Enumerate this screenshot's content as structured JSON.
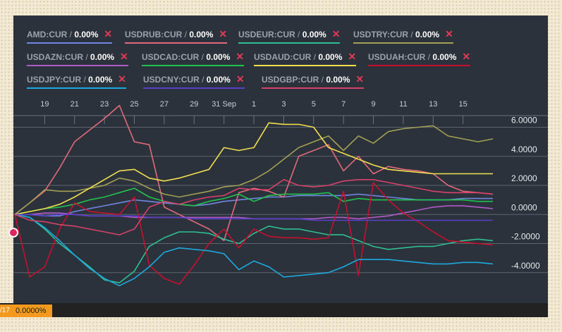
{
  "legend": [
    {
      "symbol": "AMD:CUR",
      "value": "0.00%",
      "color": "#6f87e0",
      "close": "✕"
    },
    {
      "symbol": "USDRUB:CUR",
      "value": "0.00%",
      "color": "#e06a7a",
      "close": "✕"
    },
    {
      "symbol": "USDEUR:CUR",
      "value": "0.00%",
      "color": "#2fbf93",
      "close": "✕"
    },
    {
      "symbol": "USDTRY:CUR",
      "value": "0.00%",
      "color": "#a39f55",
      "close": "✕"
    },
    {
      "symbol": "USDAZN:CUR",
      "value": "0.00%",
      "color": "#b05cc8",
      "close": "✕"
    },
    {
      "symbol": "USDCAD:CUR",
      "value": "0.00%",
      "color": "#22c24e",
      "close": "✕"
    },
    {
      "symbol": "USDAUD:CUR",
      "value": "0.00%",
      "color": "#f2df4f",
      "close": "✕"
    },
    {
      "symbol": "USDUAH:CUR",
      "value": "0.00%",
      "color": "#c8102e",
      "close": "✕"
    },
    {
      "symbol": "USDJPY:CUR",
      "value": "0.00%",
      "color": "#1da9de",
      "close": "✕"
    },
    {
      "symbol": "USDCNY:CUR",
      "value": "0.00%",
      "color": "#5a3fc8",
      "close": "✕"
    },
    {
      "symbol": "USDGBP:CUR",
      "value": "0.00%",
      "color": "#d6426a",
      "close": "✕"
    }
  ],
  "footer": {
    "date_fragment": "/17",
    "value": "0.0000%"
  },
  "chart_data": {
    "type": "line",
    "title": "",
    "xlabel": "",
    "ylabel": "",
    "x": [
      17,
      18,
      19,
      20,
      21,
      22,
      23,
      24,
      25,
      26,
      27,
      28,
      29,
      30,
      31,
      32,
      33,
      34,
      35,
      36,
      37,
      38,
      39,
      40,
      41,
      42,
      43,
      44,
      45,
      46,
      47,
      48,
      49
    ],
    "x_ticks": [
      19,
      21,
      23,
      25,
      27,
      29,
      31,
      33,
      35,
      37,
      39,
      41,
      43,
      45,
      47
    ],
    "x_tick_labels": [
      "19",
      "21",
      "23",
      "25",
      "27",
      "29",
      "31 Sep",
      "1",
      "3",
      "5",
      "7",
      "9",
      "11",
      "13",
      "15"
    ],
    "y_ticks": [
      6,
      4,
      2,
      0,
      -2,
      -4
    ],
    "y_tick_labels": [
      "6.0000",
      "4.0000",
      "2.0000",
      "0.0000",
      "-2.0000",
      "-4.0000"
    ],
    "ylim": [
      -6,
      6.8
    ],
    "grid": true,
    "series": [
      {
        "name": "AMD:CUR",
        "color": "#6f87e0",
        "values": [
          0,
          0.0,
          -0.1,
          -0.1,
          0.2,
          0.4,
          0.6,
          0.8,
          1.0,
          0.9,
          0.8,
          0.7,
          0.6,
          0.7,
          0.9,
          1.0,
          1.1,
          1.2,
          1.2,
          1.3,
          1.3,
          1.3,
          1.3,
          1.4,
          1.3,
          1.2,
          1.1,
          1.0,
          1.0,
          1.0,
          1.1,
          1.1,
          1.1
        ]
      },
      {
        "name": "USDRUB:CUR",
        "color": "#e06a7a",
        "values": [
          0,
          0.8,
          1.6,
          3.2,
          5.0,
          5.8,
          6.6,
          7.5,
          5.0,
          4.8,
          0.5,
          0.0,
          -0.5,
          -1.0,
          -1.8,
          1.5,
          1.8,
          1.6,
          1.2,
          4.0,
          4.4,
          4.8,
          3.0,
          4.0,
          2.8,
          3.3,
          3.1,
          3.0,
          2.8,
          2.0,
          1.6,
          1.5,
          1.4
        ]
      },
      {
        "name": "USDEUR:CUR",
        "color": "#2fbf93",
        "values": [
          0,
          -0.2,
          -1.0,
          -2.0,
          -2.8,
          -3.6,
          -4.5,
          -4.7,
          -3.9,
          -2.2,
          -1.6,
          -1.2,
          -1.2,
          -1.3,
          -1.7,
          -2.0,
          -1.3,
          -0.8,
          -1.0,
          -1.0,
          -1.2,
          -1.4,
          -1.4,
          -1.8,
          -2.2,
          -2.4,
          -2.3,
          -2.2,
          -2.2,
          -2.0,
          -1.8,
          -1.7,
          -1.8
        ]
      },
      {
        "name": "USDTRY:CUR",
        "color": "#a39f55",
        "values": [
          0,
          0.8,
          1.7,
          1.6,
          1.6,
          1.8,
          2.0,
          2.5,
          2.3,
          1.8,
          1.4,
          1.2,
          1.4,
          1.6,
          1.9,
          2.0,
          2.4,
          3.0,
          3.8,
          4.6,
          5.0,
          5.4,
          4.4,
          5.4,
          4.9,
          5.7,
          5.9,
          6.0,
          6.1,
          5.4,
          5.2,
          5.0,
          5.2
        ]
      },
      {
        "name": "USDAZN:CUR",
        "color": "#b05cc8",
        "values": [
          0,
          0.0,
          0.1,
          0.1,
          0.0,
          -0.1,
          -0.1,
          -0.1,
          -0.2,
          -0.2,
          -0.2,
          -0.2,
          -0.2,
          -0.2,
          -0.2,
          -0.2,
          -0.3,
          -0.3,
          -0.3,
          -0.3,
          -0.3,
          -0.2,
          -0.2,
          -0.3,
          -0.2,
          -0.1,
          0.1,
          0.3,
          0.5,
          0.6,
          0.6,
          0.5,
          0.4
        ]
      },
      {
        "name": "USDCAD:CUR",
        "color": "#22c24e",
        "values": [
          0,
          0.2,
          0.4,
          0.5,
          0.7,
          1.0,
          1.2,
          1.5,
          1.8,
          1.2,
          0.9,
          0.7,
          0.6,
          0.9,
          1.1,
          1.4,
          0.9,
          1.3,
          1.4,
          1.4,
          1.4,
          1.5,
          0.9,
          1.1,
          1.0,
          1.0,
          1.0,
          1.0,
          1.0,
          1.0,
          1.0,
          0.9,
          0.9
        ]
      },
      {
        "name": "USDAUD:CUR",
        "color": "#f2df4f",
        "values": [
          0,
          0.2,
          0.4,
          0.7,
          1.2,
          1.8,
          2.4,
          3.0,
          3.1,
          2.5,
          2.3,
          2.5,
          2.8,
          3.1,
          4.6,
          4.4,
          4.6,
          6.3,
          6.2,
          6.2,
          6.0,
          4.6,
          4.2,
          3.8,
          3.4,
          3.1,
          3.0,
          2.9,
          2.8,
          2.8,
          2.8,
          2.8,
          2.8
        ]
      },
      {
        "name": "USDUAH:CUR",
        "color": "#c8102e",
        "values": [
          0,
          -4.3,
          -3.6,
          -1.0,
          0.8,
          0.2,
          0.1,
          0.0,
          1.2,
          -3.5,
          -4.4,
          -4.8,
          -3.5,
          -2.0,
          -1.0,
          -2.3,
          -1.0,
          -1.5,
          -1.6,
          -1.6,
          -1.7,
          -1.6,
          1.6,
          -4.2,
          2.2,
          1.0,
          0.1,
          -0.5,
          -1.2,
          -1.8,
          -1.9,
          -2.0,
          -2.1
        ]
      },
      {
        "name": "USDJPY:CUR",
        "color": "#1da9de",
        "values": [
          0,
          -0.2,
          -0.9,
          -1.8,
          -2.8,
          -3.7,
          -4.4,
          -4.9,
          -4.4,
          -3.6,
          -2.6,
          -2.3,
          -2.4,
          -2.5,
          -2.7,
          -3.8,
          -3.2,
          -3.6,
          -4.3,
          -4.2,
          -4.1,
          -4.0,
          -3.6,
          -3.1,
          -3.1,
          -3.1,
          -3.2,
          -3.3,
          -3.4,
          -3.4,
          -3.3,
          -3.3,
          -3.4
        ]
      },
      {
        "name": "USDCNY:CUR",
        "color": "#5a3fc8",
        "values": [
          0,
          0.0,
          -0.1,
          0.0,
          0.0,
          -0.1,
          -0.1,
          -0.1,
          -0.1,
          -0.2,
          -0.2,
          -0.2,
          -0.3,
          -0.3,
          -0.3,
          -0.3,
          -0.3,
          -0.3,
          -0.3,
          -0.3,
          -0.4,
          -0.4,
          -0.4,
          -0.4,
          -0.4,
          -0.4,
          -0.4,
          -0.4,
          -0.4,
          -0.4,
          -0.4,
          -0.4,
          -0.4
        ]
      },
      {
        "name": "USDGBP:CUR",
        "color": "#d6426a",
        "values": [
          0,
          -0.4,
          -0.5,
          -0.7,
          -0.8,
          -1.0,
          -1.2,
          -1.4,
          -1.0,
          0.5,
          0.9,
          0.7,
          1.0,
          1.2,
          1.3,
          1.8,
          1.7,
          1.7,
          2.4,
          2.0,
          1.9,
          2.0,
          2.3,
          2.4,
          2.4,
          2.2,
          2.0,
          1.8,
          1.6,
          1.5,
          1.5,
          1.5,
          1.4
        ]
      }
    ]
  }
}
